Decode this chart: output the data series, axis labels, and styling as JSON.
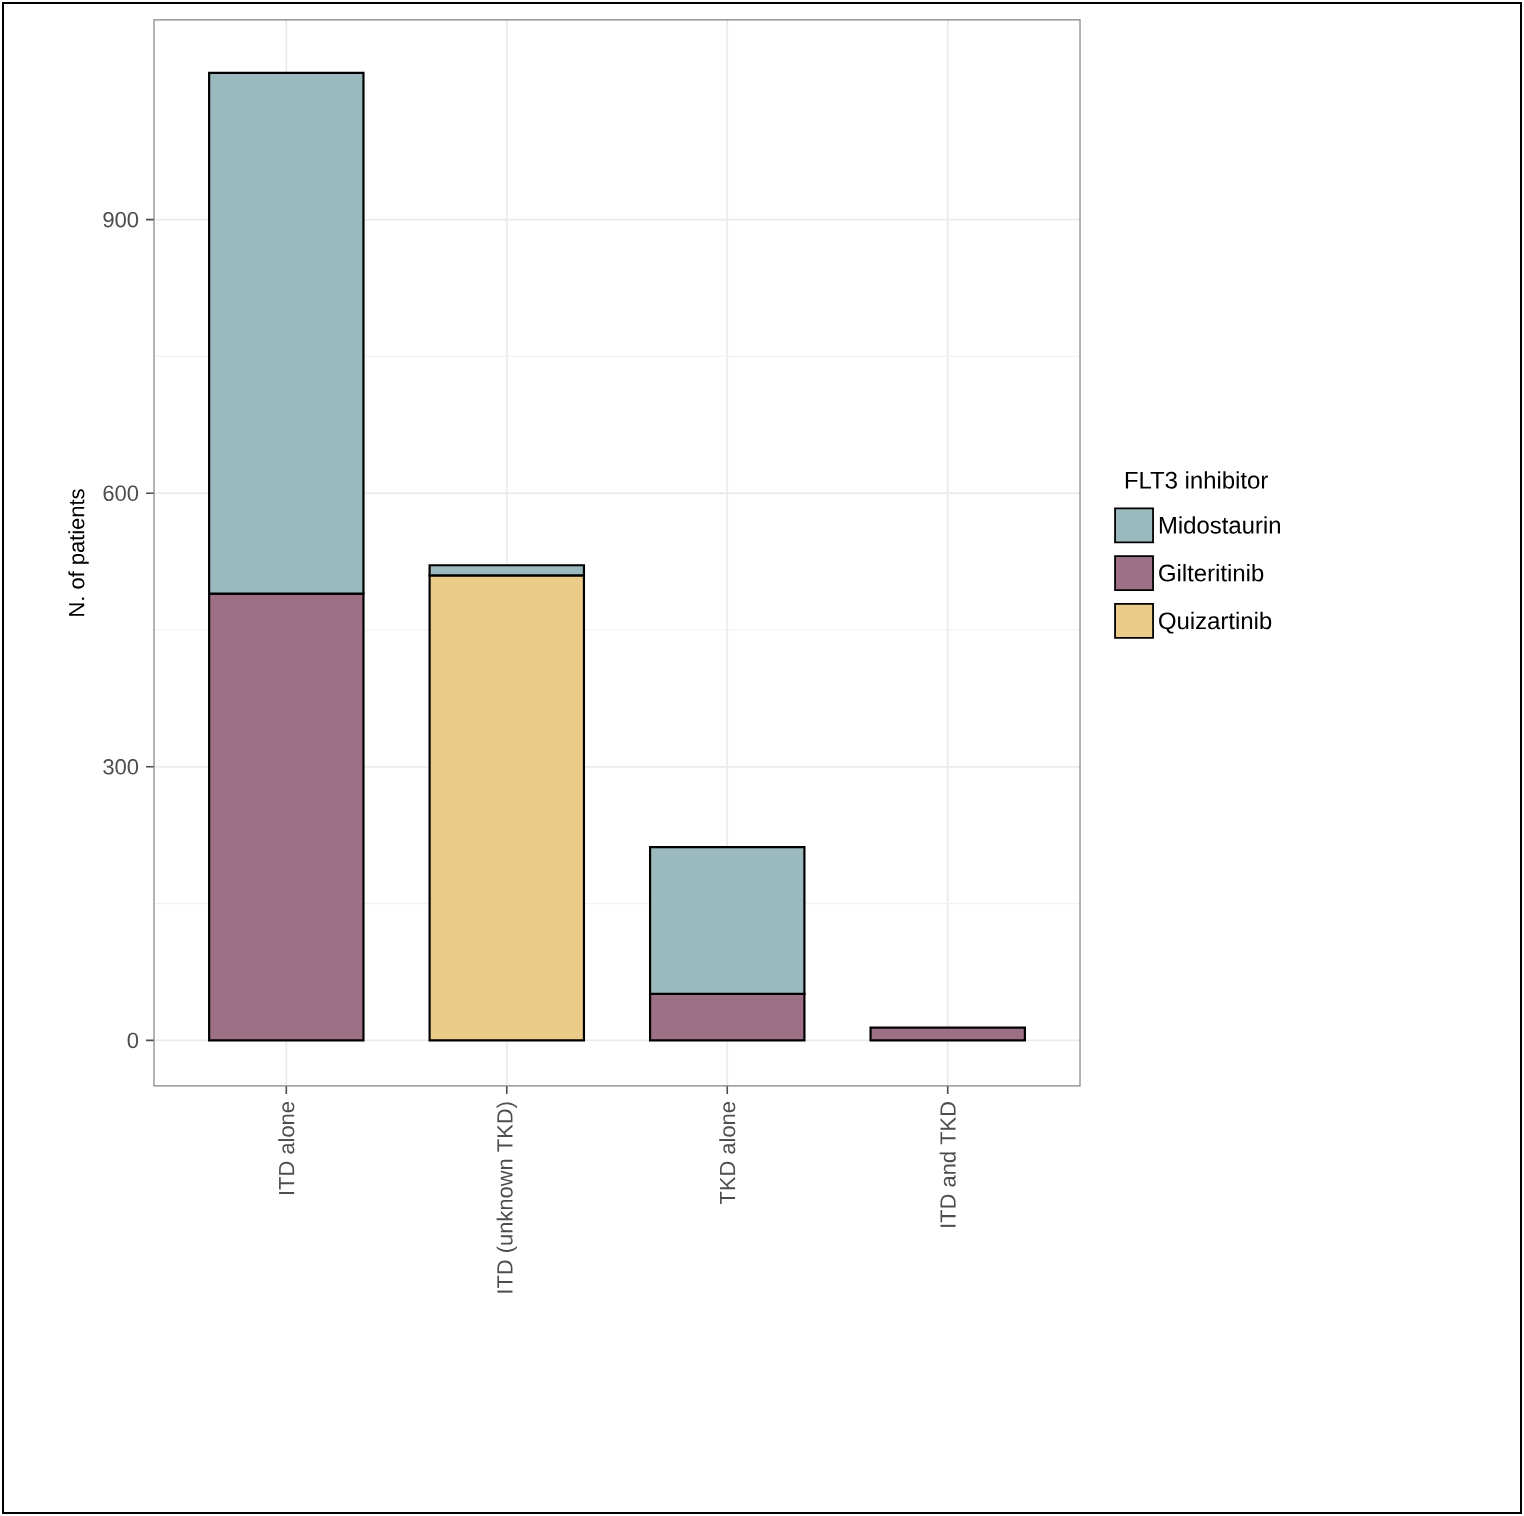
{
  "chart_data": {
    "type": "bar",
    "stacked": true,
    "ylabel": "N. of patients",
    "legend_title": "FLT3 inhibitor",
    "legend": "right",
    "grid": true,
    "categories": [
      "ITD alone",
      "ITD (unknown TKD)",
      "TKD alone",
      "ITD and TKD"
    ],
    "series": [
      {
        "name": "Quizartinib",
        "color": "#eacb87",
        "values": [
          null,
          510,
          null,
          null
        ]
      },
      {
        "name": "Gilteritinib",
        "color": "#9e7086",
        "values": [
          490,
          null,
          51,
          14
        ]
      },
      {
        "name": "Midostaurin",
        "color": "#9bbabd",
        "values": [
          571,
          11,
          161,
          null
        ]
      }
    ],
    "ylim": [
      -50,
      1119
    ],
    "yticks": [
      0,
      300,
      600,
      900
    ]
  }
}
